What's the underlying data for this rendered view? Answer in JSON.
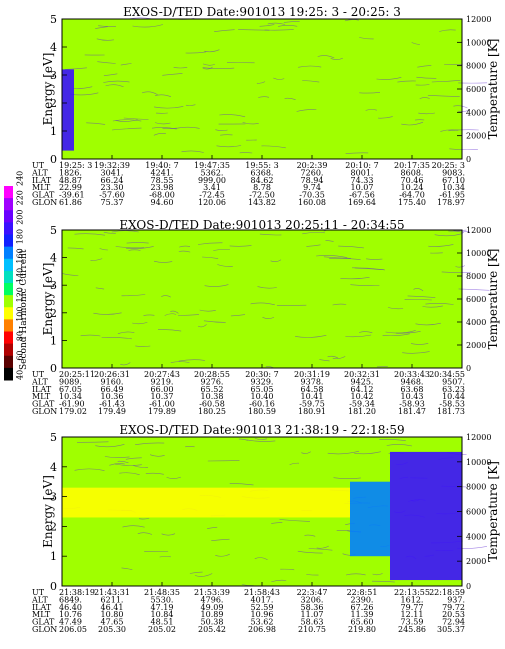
{
  "colorbar": {
    "label": "Second Harmonic Current",
    "ticks": [
      "40",
      "60",
      "80",
      "100",
      "120",
      "140",
      "160",
      "180",
      "200",
      "220",
      "240"
    ],
    "colors": [
      "#000000",
      "#5a0000",
      "#b00000",
      "#ff0000",
      "#ff8000",
      "#ffff00",
      "#a0ff00",
      "#00ff60",
      "#00e0c0",
      "#00c0ff",
      "#0080ff",
      "#1020ff",
      "#3a10ff",
      "#6a00ff",
      "#a000ff",
      "#ff00ff"
    ]
  },
  "panels": [
    {
      "title": "EXOS-D/TED   Date:901013  19:25: 3 - 20:25: 3",
      "ylabel_left": "Energy [eV]",
      "ylabel_right": "Temperature [K]",
      "row_labels": [
        "UT",
        "ALT",
        "ILAT",
        "MLT",
        "GLAT",
        "GLON"
      ],
      "columns": [
        [
          "19:25: 3",
          "1826.",
          "48.87",
          "22.99",
          "-39.61",
          "61.86"
        ],
        [
          "19:32:39",
          "3041.",
          "66.24",
          "23.30",
          "-57.60",
          "75.37"
        ],
        [
          "19:40: 7",
          "4241.",
          "78.55",
          "23.98",
          "-68.00",
          "94.60"
        ],
        [
          "19:47:35",
          "5362.",
          "999.00",
          "3.41",
          "-72.45",
          "120.06"
        ],
        [
          "19:55: 3",
          "6368.",
          "84.62",
          "8.78",
          "-72.50",
          "143.82"
        ],
        [
          "20:2:39",
          "7260.",
          "78.94",
          "9.74",
          "-70.35",
          "160.08"
        ],
        [
          "20:10: 7",
          "8001.",
          "74.33",
          "10.07",
          "-67.56",
          "169.64"
        ],
        [
          "20:17:35",
          "8608.",
          "70.46",
          "10.24",
          "-64.70",
          "175.40"
        ],
        [
          "20:25: 3",
          "9083.",
          "67.10",
          "10.34",
          "-61.95",
          "178.97"
        ]
      ]
    },
    {
      "title": "EXOS-D/TED   Date:901013  20:25:11 - 20:34:55",
      "ylabel_left": "Energy [eV]",
      "ylabel_right": "Temperature [K]",
      "row_labels": [
        "UT",
        "ALT",
        "ILAT",
        "MLT",
        "GLAT",
        "GLON"
      ],
      "columns": [
        [
          "20:25:11",
          "9089.",
          "67.05",
          "10.34",
          "-61.90",
          "179.02"
        ],
        [
          "20:26:31",
          "9160.",
          "66.49",
          "10.36",
          "-61.43",
          "179.49"
        ],
        [
          "20:27:43",
          "9219.",
          "66.00",
          "10.37",
          "-61.00",
          "179.89"
        ],
        [
          "20:28:55",
          "9276.",
          "65.52",
          "10.38",
          "-60.58",
          "180.25"
        ],
        [
          "20:30: 7",
          "9329.",
          "65.05",
          "10.40",
          "-60.16",
          "180.59"
        ],
        [
          "20:31:19",
          "9378.",
          "64.58",
          "10.41",
          "-59.75",
          "180.91"
        ],
        [
          "20:32:31",
          "9425.",
          "64.12",
          "10.42",
          "-59.34",
          "181.20"
        ],
        [
          "20:33:43",
          "9468.",
          "63.68",
          "10.43",
          "-58.93",
          "181.47"
        ],
        [
          "20:34:55",
          "9507.",
          "63.23",
          "10.44",
          "-58.53",
          "181.73"
        ]
      ]
    },
    {
      "title": "EXOS-D/TED   Date:901013  21:38:19 - 22:18:59",
      "ylabel_left": "Energy [eV]",
      "ylabel_right": "Temperature [K]",
      "row_labels": [
        "UT",
        "ALT",
        "ILAT",
        "MLT",
        "GLAT",
        "GLON"
      ],
      "columns": [
        [
          "21:38:19",
          "6849.",
          "46.40",
          "10.76",
          "47.49",
          "206.05"
        ],
        [
          "21:43:31",
          "6211.",
          "46.41",
          "10.80",
          "47.65",
          "205.30"
        ],
        [
          "21:48:35",
          "5530.",
          "47.19",
          "10.84",
          "48.51",
          "205.02"
        ],
        [
          "21:53:39",
          "4796.",
          "49.09",
          "10.89",
          "50.38",
          "205.42"
        ],
        [
          "21:58:43",
          "4017.",
          "52.59",
          "10.96",
          "53.62",
          "206.98"
        ],
        [
          "22:3:47",
          "3206.",
          "58.36",
          "11.07",
          "58.63",
          "210.75"
        ],
        [
          "22:8:51",
          "2390.",
          "67.26",
          "11.39",
          "65.60",
          "219.80"
        ],
        [
          "22:13:55",
          "1612.",
          "79.77",
          "12.11",
          "73.59",
          "245.86"
        ],
        [
          "22:18:59",
          "937.",
          "79.72",
          "20.53",
          "72.94",
          "305.37"
        ]
      ]
    }
  ],
  "chart_data": [
    {
      "type": "heatmap",
      "title": "EXOS-D/TED   Date:901013  19:25: 3 - 20:25: 3",
      "ylabel": "Energy [eV]",
      "y2label": "Temperature [K]",
      "ylim": [
        0,
        5
      ],
      "y2lim": [
        0,
        12000
      ],
      "yticks": [
        "0",
        "1",
        "2",
        "3",
        "4",
        "5"
      ],
      "y2ticks": [
        "0",
        "2000",
        "4000",
        "6000",
        "8000",
        "10000",
        "12000"
      ],
      "x": [
        "19:25: 3",
        "19:32:39",
        "19:40: 7",
        "19:47:35",
        "19:55: 3",
        "20:2:39",
        "20:10: 7",
        "20:17:35",
        "20:25: 3"
      ],
      "background_level": 120,
      "features": [
        {
          "ut_fraction_range": [
            0.0,
            0.03
          ],
          "energy_range": [
            0.3,
            3.2
          ],
          "level": 200
        }
      ]
    },
    {
      "type": "heatmap",
      "title": "EXOS-D/TED   Date:901013  20:25:11 - 20:34:55",
      "ylabel": "Energy [eV]",
      "y2label": "Temperature [K]",
      "ylim": [
        0,
        5
      ],
      "y2lim": [
        0,
        12000
      ],
      "yticks": [
        "0",
        "1",
        "2",
        "3",
        "4",
        "5"
      ],
      "y2ticks": [
        "0",
        "2000",
        "4000",
        "6000",
        "8000",
        "10000",
        "12000"
      ],
      "x": [
        "20:25:11",
        "20:26:31",
        "20:27:43",
        "20:28:55",
        "20:30: 7",
        "20:31:19",
        "20:32:31",
        "20:33:43",
        "20:34:55"
      ],
      "background_level": 120,
      "features": []
    },
    {
      "type": "heatmap",
      "title": "EXOS-D/TED   Date:901013  21:38:19 - 22:18:59",
      "ylabel": "Energy [eV]",
      "y2label": "Temperature [K]",
      "ylim": [
        0,
        5
      ],
      "y2lim": [
        0,
        12000
      ],
      "yticks": [
        "0",
        "1",
        "2",
        "3",
        "4",
        "5"
      ],
      "y2ticks": [
        "0",
        "2000",
        "4000",
        "6000",
        "8000",
        "10000",
        "12000"
      ],
      "x": [
        "21:38:19",
        "21:43:31",
        "21:48:35",
        "21:53:39",
        "21:58:43",
        "22:3:47",
        "22:8:51",
        "22:13:55",
        "22:18:59"
      ],
      "background_level": 120,
      "features": [
        {
          "ut_fraction_range": [
            0.0,
            0.72
          ],
          "energy_range": [
            2.3,
            3.3
          ],
          "level": 105
        },
        {
          "ut_fraction_range": [
            0.72,
            0.82
          ],
          "energy_range": [
            1.0,
            3.5
          ],
          "level": 170
        },
        {
          "ut_fraction_range": [
            0.82,
            1.0
          ],
          "energy_range": [
            0.2,
            4.5
          ],
          "level": 195
        }
      ]
    }
  ]
}
